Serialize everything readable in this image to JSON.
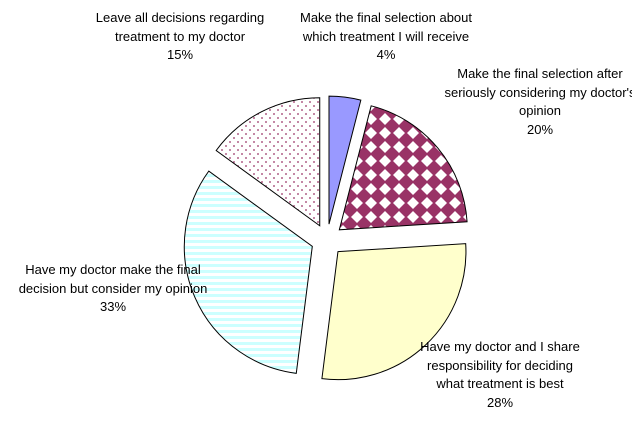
{
  "chart_data": {
    "type": "pie",
    "categories": [
      "Make the final selection about which treatment I will receive",
      "Make the final selection after seriously considering my doctor's opinion",
      "Have my doctor and I share responsibility for deciding what treatment is best",
      "Have my doctor make the final decision but consider my opinion",
      "Leave all decisions regarding treatment to my doctor"
    ],
    "values": [
      4,
      20,
      28,
      33,
      15
    ],
    "value_labels": [
      "4%",
      "20%",
      "28%",
      "33%",
      "15%"
    ],
    "colors": [
      "#9999ff",
      "#993366",
      "#ffffcc",
      "#ccffff",
      "#993366"
    ]
  }
}
